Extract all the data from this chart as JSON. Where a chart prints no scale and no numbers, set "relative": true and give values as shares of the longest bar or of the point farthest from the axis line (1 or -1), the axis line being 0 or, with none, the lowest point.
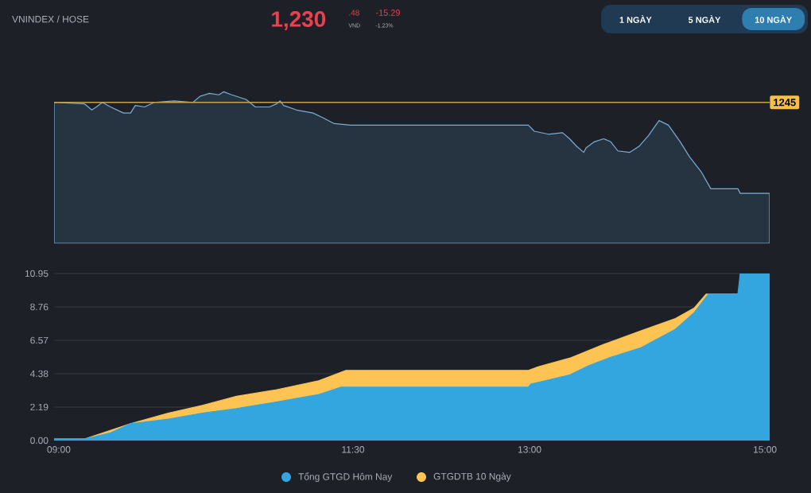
{
  "chart_data": [
    {
      "type": "area",
      "title": "VNINDEX / HOSE",
      "annotations": [
        "1,230",
        ".48",
        "VND",
        "-15.29",
        "-1.23%",
        "1 NGÀY",
        "5 NGÀY",
        "10 NGÀY",
        "1245"
      ],
      "x": [
        8.96,
        9.22,
        9.28,
        9.32,
        9.37,
        9.44,
        9.55,
        9.61,
        9.65,
        9.73,
        9.81,
        9.98,
        10.14,
        10.2,
        10.28,
        10.36,
        10.4,
        10.47,
        10.59,
        10.67,
        10.79,
        10.85,
        10.88,
        10.91,
        11.02,
        11.16,
        11.24,
        11.34,
        11.48,
        12.99,
        13.04,
        13.1,
        13.16,
        13.28,
        13.34,
        13.4,
        13.46,
        13.48,
        13.55,
        13.63,
        13.69,
        13.75,
        13.85,
        13.93,
        14.01,
        14.1,
        14.18,
        14.28,
        14.36,
        14.46,
        14.54,
        14.77,
        14.79,
        15.04
      ],
      "values": [
        0.93,
        0.92,
        0.88,
        0.9,
        0.93,
        0.9,
        0.86,
        0.86,
        0.91,
        0.9,
        0.93,
        0.94,
        0.93,
        0.97,
        0.99,
        0.98,
        1.0,
        0.98,
        0.95,
        0.9,
        0.9,
        0.92,
        0.94,
        0.91,
        0.88,
        0.86,
        0.83,
        0.79,
        0.78,
        0.78,
        0.74,
        0.73,
        0.72,
        0.73,
        0.69,
        0.64,
        0.6,
        0.63,
        0.67,
        0.69,
        0.67,
        0.61,
        0.6,
        0.64,
        0.71,
        0.81,
        0.78,
        0.67,
        0.57,
        0.47,
        0.36,
        0.36,
        0.33,
        0.33
      ],
      "relative": true,
      "color": "#7aaed6",
      "xlim": [
        8.96,
        15.04
      ],
      "ref_lines": [
        {
          "axis": "y",
          "value": 0.93,
          "color": "#c9a04a"
        }
      ],
      "tick_labels": false
    },
    {
      "type": "area",
      "series": [
        {
          "name": "Tổng GTGD Hôm Nay",
          "color": "#33a6df",
          "x": [
            8.96,
            9.22,
            9.44,
            9.61,
            9.93,
            10.22,
            10.51,
            10.83,
            11.2,
            11.4,
            12.99,
            13.01,
            13.34,
            13.5,
            13.67,
            13.95,
            14.24,
            14.4,
            14.52,
            14.77,
            14.79,
            15.04
          ],
          "values": [
            0.1,
            0.1,
            0.5,
            1.1,
            1.4,
            1.8,
            2.1,
            2.5,
            3.0,
            3.5,
            3.5,
            3.7,
            4.3,
            4.9,
            5.4,
            6.1,
            7.3,
            8.4,
            9.6,
            9.6,
            10.95,
            10.95
          ]
        },
        {
          "name": "GTGDTB 10 Ngày",
          "color": "#fdc453",
          "x": [
            8.96,
            9.22,
            9.61,
            9.93,
            10.22,
            10.51,
            10.83,
            11.2,
            11.44,
            12.99,
            13.06,
            13.34,
            13.63,
            13.95,
            14.24,
            14.4,
            14.5,
            14.77
          ],
          "values": [
            0.1,
            0.1,
            1.1,
            1.8,
            2.3,
            2.9,
            3.3,
            3.9,
            4.6,
            4.6,
            4.8,
            5.4,
            6.3,
            7.2,
            8.0,
            8.7,
            9.6,
            9.6
          ]
        }
      ],
      "xlim": [
        8.96,
        15.04
      ],
      "ylim": [
        0,
        10.95
      ],
      "yticks": [
        {
          "value": 0,
          "label": "0.00"
        },
        2.19,
        4.38,
        6.57,
        8.76,
        10.95
      ],
      "xticks": [
        {
          "value": 9,
          "label": "09:00"
        },
        {
          "value": 11.5,
          "label": "11:30"
        },
        {
          "value": 13,
          "label": "13:00"
        },
        {
          "value": 15,
          "label": "15:00"
        }
      ],
      "grid": "y",
      "legend": "bottom"
    }
  ]
}
